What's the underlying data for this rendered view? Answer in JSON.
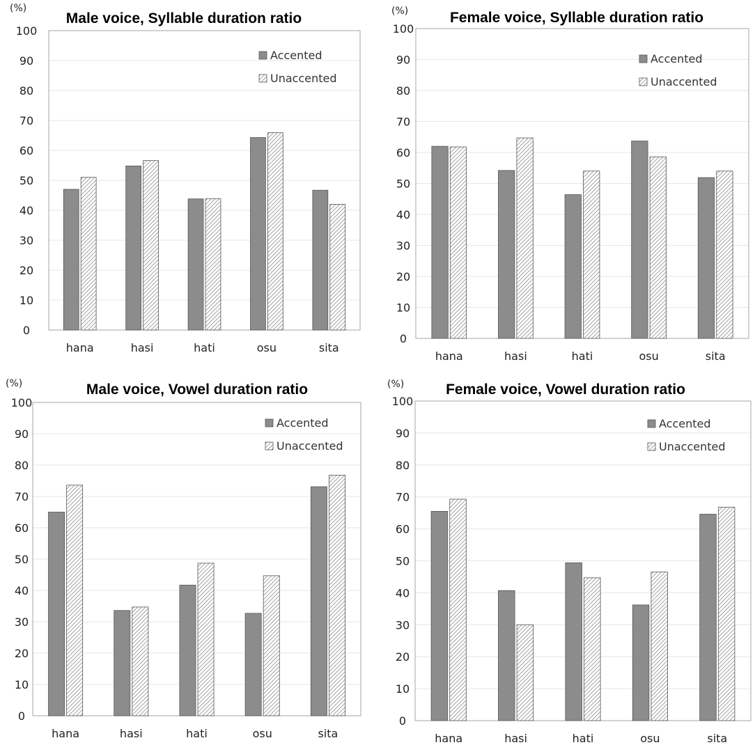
{
  "series_names": [
    "Accented",
    "Unaccented"
  ],
  "colors": {
    "accented": "#8c8c8c",
    "frame": "#a6a6a6",
    "grid": "#e6e6e6",
    "hatch": "#7a7a7a",
    "bar_stroke": "#555555"
  },
  "chart_data": [
    {
      "type": "bar",
      "title": "Male voice, Syllable duration ratio",
      "unit_label": "(%)",
      "categories": [
        "hana",
        "hasi",
        "hati",
        "osu",
        "sita"
      ],
      "series": [
        {
          "name": "Accented",
          "values": [
            47,
            54.8,
            43.8,
            64.3,
            46.7
          ]
        },
        {
          "name": "Unaccented",
          "values": [
            51,
            56.6,
            43.9,
            65.9,
            42
          ]
        }
      ],
      "ylim": [
        0,
        100
      ],
      "yticks": [
        0,
        10,
        20,
        30,
        40,
        50,
        60,
        70,
        80,
        90,
        100
      ],
      "legend": "top-right"
    },
    {
      "type": "bar",
      "title": "Female voice, Syllable duration ratio",
      "unit_label": "(%)",
      "categories": [
        "hana",
        "hasi",
        "hati",
        "osu",
        "sita"
      ],
      "series": [
        {
          "name": "Accented",
          "values": [
            62,
            54.2,
            46.4,
            63.7,
            51.9
          ]
        },
        {
          "name": "Unaccented",
          "values": [
            61.8,
            64.7,
            54,
            58.6,
            54
          ]
        }
      ],
      "ylim": [
        0,
        100
      ],
      "yticks": [
        0,
        10,
        20,
        30,
        40,
        50,
        60,
        70,
        80,
        90,
        100
      ],
      "legend": "top-right"
    },
    {
      "type": "bar",
      "title": "Male voice, Vowel duration ratio",
      "unit_label": "(%)",
      "categories": [
        "hana",
        "hasi",
        "hati",
        "osu",
        "sita"
      ],
      "series": [
        {
          "name": "Accented",
          "values": [
            65,
            33.6,
            41.7,
            32.7,
            73.1
          ]
        },
        {
          "name": "Unaccented",
          "values": [
            73.6,
            34.7,
            48.7,
            44.7,
            76.8
          ]
        }
      ],
      "ylim": [
        0,
        100
      ],
      "yticks": [
        0,
        10,
        20,
        30,
        40,
        50,
        60,
        70,
        80,
        90,
        100
      ],
      "legend": "top-right"
    },
    {
      "type": "bar",
      "title": "Female voice, Vowel duration ratio",
      "unit_label": "(%)",
      "categories": [
        "hana",
        "hasi",
        "hati",
        "osu",
        "sita"
      ],
      "series": [
        {
          "name": "Accented",
          "values": [
            65.5,
            40.7,
            49.4,
            36.2,
            64.6
          ]
        },
        {
          "name": "Unaccented",
          "values": [
            69.3,
            30,
            44.7,
            46.5,
            66.8
          ]
        }
      ],
      "ylim": [
        0,
        100
      ],
      "yticks": [
        0,
        10,
        20,
        30,
        40,
        50,
        60,
        70,
        80,
        90,
        100
      ],
      "legend": "top-right"
    }
  ]
}
